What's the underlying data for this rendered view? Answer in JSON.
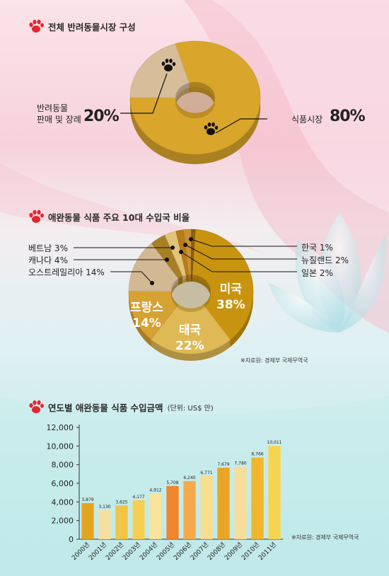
{
  "section1": {
    "title": "전체 반려동물시장 구성",
    "labels": [
      {
        "name": "반려동물 판매 및 장례",
        "line1": "반려동물",
        "line2": "판매 및 장례",
        "pct": "20%"
      },
      {
        "name": "식품시장",
        "line1": "식품시장",
        "pct": "80%"
      }
    ]
  },
  "section2": {
    "title": "애완동물 식품 주요 10대 수입국 비율",
    "source": "※자료원: 경제부 국제무역국",
    "outside_labels": {
      "vietnam": "베트남 3%",
      "canada": "캐나다 4%",
      "australia": "오스트레일리아 14%",
      "korea": "한국 1%",
      "newzealand": "뉴질랜드 2%",
      "japan": "일본 2%"
    },
    "inside_labels": {
      "usa_name": "미국",
      "usa_pct": "38%",
      "thai_name": "태국",
      "thai_pct": "22%",
      "france_name": "프랑스",
      "france_pct": "14%"
    }
  },
  "section3": {
    "title": "연도별 애완동물 식품 수입금액",
    "unit": "(단위: US$ 만)",
    "source": "※자료원: 경제부 국제무역국"
  },
  "chart_data": [
    {
      "type": "pie",
      "title": "전체 반려동물시장 구성",
      "categories": [
        "식품시장",
        "반려동물 판매 및 장례"
      ],
      "values": [
        80,
        20
      ],
      "colors": [
        "#d9a62b",
        "#d8bd9a"
      ]
    },
    {
      "type": "pie",
      "title": "애완동물 식품 주요 10대 수입국 비율",
      "categories": [
        "미국",
        "태국",
        "프랑스",
        "오스트레일리아",
        "캐나다",
        "베트남",
        "일본",
        "뉴질랜드",
        "한국"
      ],
      "values": [
        38,
        22,
        14,
        14,
        4,
        3,
        2,
        2,
        1
      ],
      "colors": [
        "#c8940f",
        "#dfb955",
        "#d6a232",
        "#d3b894",
        "#a77f25",
        "#e0c479",
        "#b97a1a",
        "#c59132",
        "#8e5d12"
      ]
    },
    {
      "type": "bar",
      "title": "연도별 애완동물 식품 수입금액",
      "ylabel": "(단위: US$ 만)",
      "categories": [
        "2000년",
        "2001년",
        "2002년",
        "2003년",
        "2004년",
        "2005년",
        "2006년",
        "2007년",
        "2008년",
        "2009년",
        "2010년",
        "2011년"
      ],
      "values": [
        3879,
        3130,
        3625,
        4177,
        4912,
        5708,
        6240,
        6771,
        7679,
        7780,
        8766,
        10011
      ],
      "value_labels": [
        "3,879",
        "3,130",
        "3,625",
        "4,177",
        "4,912",
        "5,708",
        "6,240",
        "6,771",
        "7,679",
        "7,780",
        "8,766",
        "10,011"
      ],
      "yticks": [
        "0",
        "2,000",
        "4,000",
        "6,000",
        "8,000",
        "10,000",
        "12,000"
      ],
      "ylim": [
        0,
        12000
      ],
      "colors": [
        "#e3a51f",
        "#f5dfa0",
        "#f0c545",
        "#f5cf52",
        "#f7e39c",
        "#f0852c",
        "#f5a94a",
        "#f7dd8e",
        "#e8a526",
        "#f7dc9a",
        "#f0b62c",
        "#f7d44f"
      ]
    }
  ]
}
